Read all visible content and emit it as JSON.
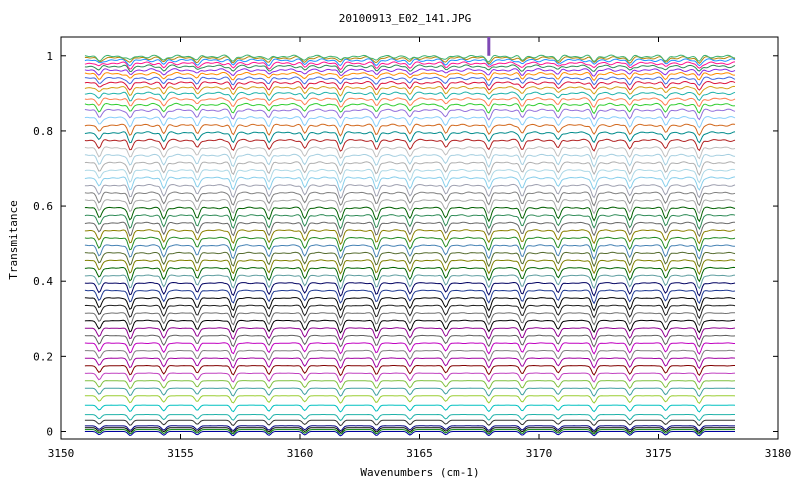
{
  "chart_data": {
    "type": "line",
    "title": "20100913_E02_141.JPG",
    "xlabel": "Wavenumbers (cm-1)",
    "ylabel": "Transmitance",
    "xlim": [
      3150,
      3180
    ],
    "ylim": [
      -0.02,
      1.05
    ],
    "data_x_range": [
      3151,
      3178.2
    ],
    "xticks": [
      "3150",
      "3155",
      "3160",
      "3165",
      "3170",
      "3175",
      "3180"
    ],
    "xtick_values": [
      3150,
      3155,
      3160,
      3165,
      3170,
      3175,
      3180
    ],
    "yticks": [
      "0",
      "0.2",
      "0.4",
      "0.6",
      "0.8",
      "1"
    ],
    "ytick_values": [
      0,
      0.2,
      0.4,
      0.6,
      0.8,
      1.0
    ],
    "grid": false,
    "legend": "none",
    "absorption_lines_cm1": [
      3151.6,
      3152.9,
      3154.3,
      3155.7,
      3157.2,
      3158.7,
      3160.2,
      3161.7,
      3163.2,
      3164.6,
      3166.1,
      3167.9,
      3169.3,
      3170.8,
      3172.3,
      3173.8,
      3175.3,
      3176.7
    ],
    "spike": {
      "x": 3167.9,
      "top": 1.05,
      "color": "#7f49b5"
    },
    "series": [
      {
        "baseline": 0.0,
        "color": "#0000a0"
      },
      {
        "baseline": 0.005,
        "color": "#008000"
      },
      {
        "baseline": 0.01,
        "color": "#000000"
      },
      {
        "baseline": 0.015,
        "color": "#000080"
      },
      {
        "baseline": 0.03,
        "color": "#333333"
      },
      {
        "baseline": 0.045,
        "color": "#20b2aa"
      },
      {
        "baseline": 0.07,
        "color": "#00c0c0"
      },
      {
        "baseline": 0.095,
        "color": "#9acd32"
      },
      {
        "baseline": 0.115,
        "color": "#40a0a0"
      },
      {
        "baseline": 0.135,
        "color": "#80c040"
      },
      {
        "baseline": 0.155,
        "color": "#c040c0"
      },
      {
        "baseline": 0.175,
        "color": "#800000"
      },
      {
        "baseline": 0.195,
        "color": "#a000a0"
      },
      {
        "baseline": 0.215,
        "color": "#808080"
      },
      {
        "baseline": 0.235,
        "color": "#c000c0"
      },
      {
        "baseline": 0.255,
        "color": "#606060"
      },
      {
        "baseline": 0.275,
        "color": "#900090"
      },
      {
        "baseline": 0.295,
        "color": "#000000"
      },
      {
        "baseline": 0.315,
        "color": "#707070"
      },
      {
        "baseline": 0.335,
        "color": "#202020"
      },
      {
        "baseline": 0.355,
        "color": "#000000"
      },
      {
        "baseline": 0.375,
        "color": "#1f3a93"
      },
      {
        "baseline": 0.395,
        "color": "#000060"
      },
      {
        "baseline": 0.415,
        "color": "#5f9ea0"
      },
      {
        "baseline": 0.435,
        "color": "#006400"
      },
      {
        "baseline": 0.455,
        "color": "#808000"
      },
      {
        "baseline": 0.475,
        "color": "#556b2f"
      },
      {
        "baseline": 0.495,
        "color": "#4682b4"
      },
      {
        "baseline": 0.515,
        "color": "#228b22"
      },
      {
        "baseline": 0.535,
        "color": "#8b8000"
      },
      {
        "baseline": 0.555,
        "color": "#696969"
      },
      {
        "baseline": 0.575,
        "color": "#2e8b57"
      },
      {
        "baseline": 0.595,
        "color": "#006000"
      },
      {
        "baseline": 0.615,
        "color": "#a9a9a9"
      },
      {
        "baseline": 0.635,
        "color": "#808080"
      },
      {
        "baseline": 0.655,
        "color": "#9ea0b0"
      },
      {
        "baseline": 0.675,
        "color": "#87ceeb"
      },
      {
        "baseline": 0.695,
        "color": "#add8e6"
      },
      {
        "baseline": 0.715,
        "color": "#b0b0b0"
      },
      {
        "baseline": 0.735,
        "color": "#a6cfe0"
      },
      {
        "baseline": 0.755,
        "color": "#c0c0c0"
      },
      {
        "baseline": 0.775,
        "color": "#b22222"
      },
      {
        "baseline": 0.795,
        "color": "#008b8b"
      },
      {
        "baseline": 0.815,
        "color": "#d2691e"
      },
      {
        "baseline": 0.835,
        "color": "#87cefa"
      },
      {
        "baseline": 0.855,
        "color": "#9370db"
      },
      {
        "baseline": 0.87,
        "color": "#32cd32"
      },
      {
        "baseline": 0.885,
        "color": "#ff7f50"
      },
      {
        "baseline": 0.9,
        "color": "#20b2aa"
      },
      {
        "baseline": 0.915,
        "color": "#d4a017"
      },
      {
        "baseline": 0.928,
        "color": "#dc143c"
      },
      {
        "baseline": 0.94,
        "color": "#4169e1"
      },
      {
        "baseline": 0.952,
        "color": "#ff8c00"
      },
      {
        "baseline": 0.962,
        "color": "#8a2be2"
      },
      {
        "baseline": 0.972,
        "color": "#2e8b57"
      },
      {
        "baseline": 0.98,
        "color": "#ff1493"
      },
      {
        "baseline": 0.988,
        "color": "#1e90ff"
      },
      {
        "baseline": 0.994,
        "color": "#b8860b"
      },
      {
        "baseline": 0.998,
        "color": "#3cb371"
      }
    ]
  }
}
